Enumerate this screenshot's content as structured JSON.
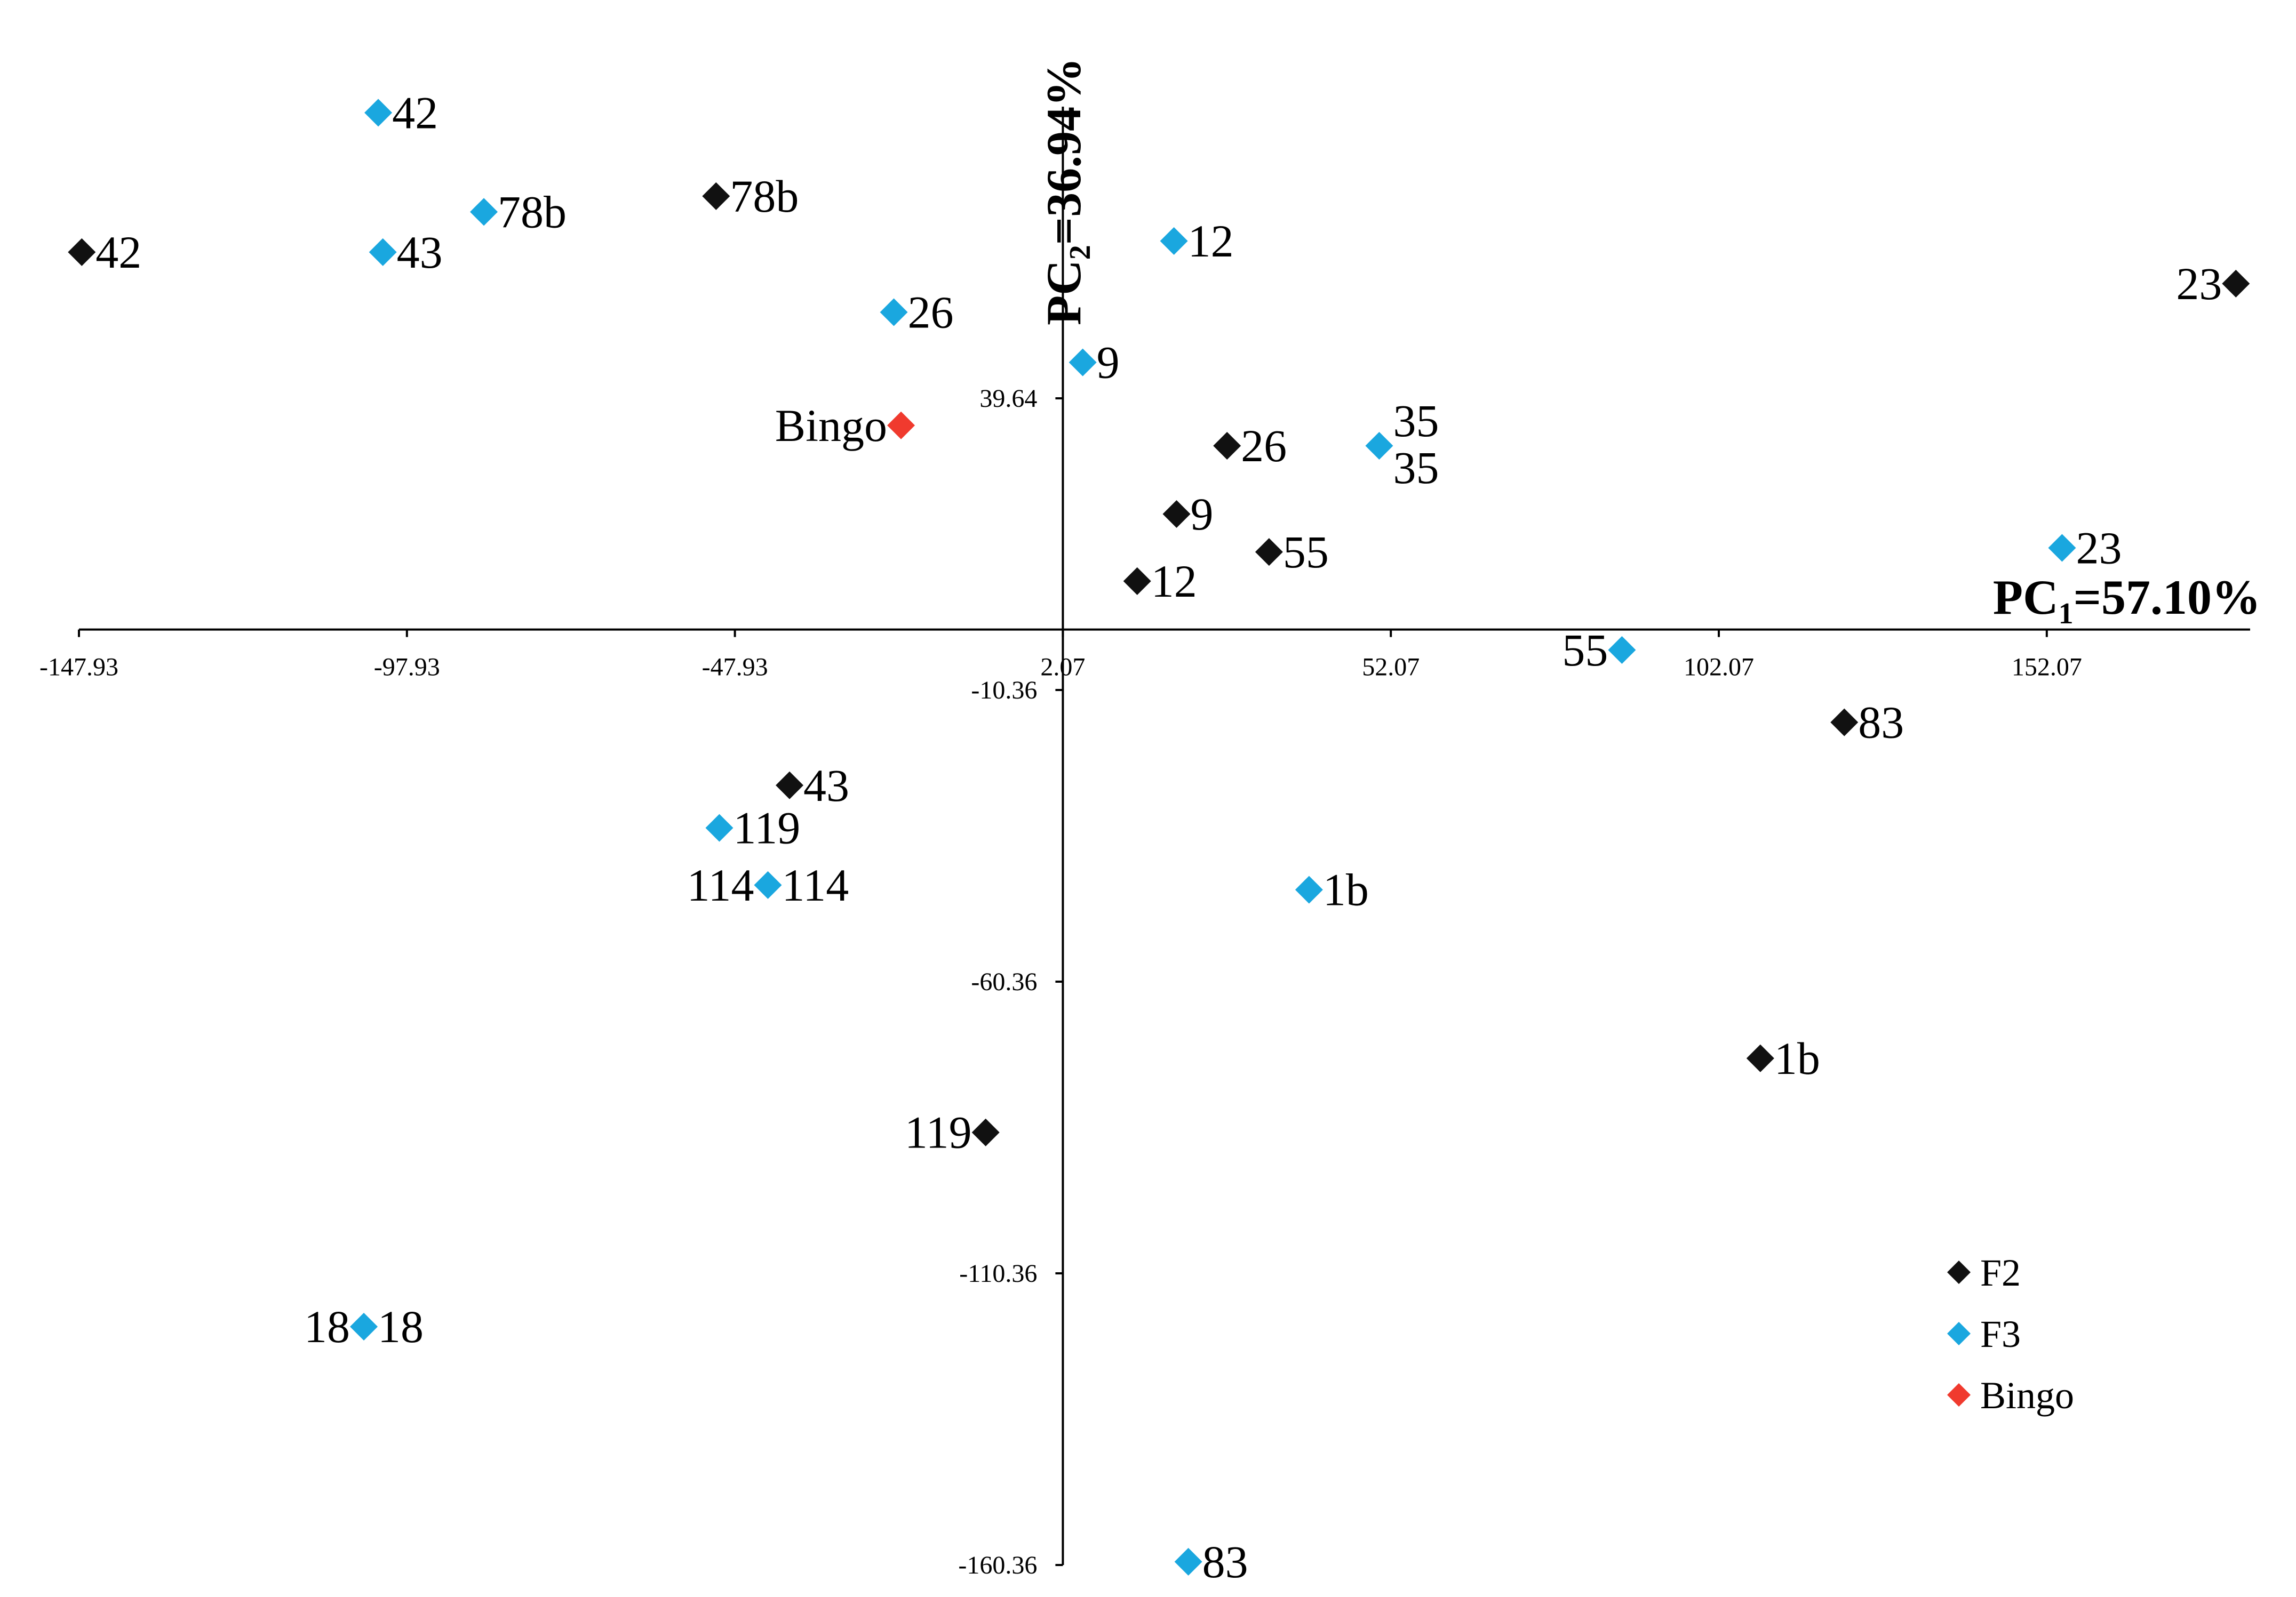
{
  "chart_data": {
    "type": "scatter",
    "title": "",
    "xlabel": {
      "main": "PC",
      "sub": "1",
      "value": "=57.10%"
    },
    "ylabel": {
      "main": "PC",
      "sub": "2",
      "value": "=36.94%"
    },
    "xlim": [
      -147.93,
      183.07
    ],
    "ylim": [
      -160.36,
      89.64
    ],
    "x_ticks": [
      "-147.93",
      "-97.93",
      "-47.93",
      "2.07",
      "52.07",
      "102.07",
      "152.07"
    ],
    "x_tick_values": [
      -147.93,
      -97.93,
      -47.93,
      2.07,
      52.07,
      102.07,
      152.07
    ],
    "y_ticks": [
      "39.64",
      "-10.36",
      "-60.36",
      "-110.36",
      "-160.36"
    ],
    "y_tick_values": [
      39.64,
      -10.36,
      -60.36,
      -110.36,
      -160.36
    ],
    "colors": {
      "F2": "#111111",
      "F3": "#1aa7df",
      "Bingo": "#f03a2e"
    },
    "legend": [
      "F2",
      "F3",
      "Bingo"
    ],
    "series": [
      {
        "name": "F2",
        "points": [
          {
            "label": "42",
            "x": -147.5,
            "y": 64.7,
            "pos": "right"
          },
          {
            "label": "78b",
            "x": -50.8,
            "y": 74.3,
            "pos": "right"
          },
          {
            "label": "23",
            "x": 180.9,
            "y": 59.3,
            "pos": "left"
          },
          {
            "label": "26",
            "x": 27.1,
            "y": 31.5,
            "pos": "right"
          },
          {
            "label": "9",
            "x": 19.4,
            "y": 19.8,
            "pos": "right"
          },
          {
            "label": "55",
            "x": 33.5,
            "y": 13.3,
            "pos": "right"
          },
          {
            "label": "12",
            "x": 13.4,
            "y": 8.3,
            "pos": "right"
          },
          {
            "label": "83",
            "x": 121.2,
            "y": -15.9,
            "pos": "right"
          },
          {
            "label": "43",
            "x": -39.6,
            "y": -26.7,
            "pos": "right"
          },
          {
            "label": "1b",
            "x": 108.4,
            "y": -73.5,
            "pos": "right"
          },
          {
            "label": "119",
            "x": -9.7,
            "y": -86.2,
            "pos": "left"
          }
        ]
      },
      {
        "name": "F3",
        "points": [
          {
            "label": "42",
            "x": -102.3,
            "y": 88.6,
            "pos": "right"
          },
          {
            "label": "78b",
            "x": -86.2,
            "y": 71.6,
            "pos": "right"
          },
          {
            "label": "43",
            "x": -101.6,
            "y": 64.7,
            "pos": "right"
          },
          {
            "label": "12",
            "x": 19.0,
            "y": 66.6,
            "pos": "right"
          },
          {
            "label": "26",
            "x": -23.7,
            "y": 54.4,
            "pos": "right"
          },
          {
            "label": "9",
            "x": 5.1,
            "y": 45.8,
            "pos": "right"
          },
          {
            "label": "35",
            "x": 50.3,
            "y": 31.5,
            "pos": "both"
          },
          {
            "label": "23",
            "x": 154.4,
            "y": 14.0,
            "pos": "right"
          },
          {
            "label": "55",
            "x": 87.3,
            "y": -3.5,
            "pos": "left"
          },
          {
            "label": "119",
            "x": -50.3,
            "y": -34.0,
            "pos": "right"
          },
          {
            "label": "114",
            "x": -42.9,
            "y": -43.8,
            "pos": "both-h"
          },
          {
            "label": "1b",
            "x": 39.6,
            "y": -44.6,
            "pos": "right"
          },
          {
            "label": "18",
            "x": -104.5,
            "y": -119.5,
            "pos": "both-h"
          },
          {
            "label": "83",
            "x": 21.2,
            "y": -159.8,
            "pos": "right"
          }
        ]
      },
      {
        "name": "Bingo",
        "points": [
          {
            "label": "Bingo",
            "x": -22.6,
            "y": 35.0,
            "pos": "left"
          }
        ]
      }
    ]
  }
}
